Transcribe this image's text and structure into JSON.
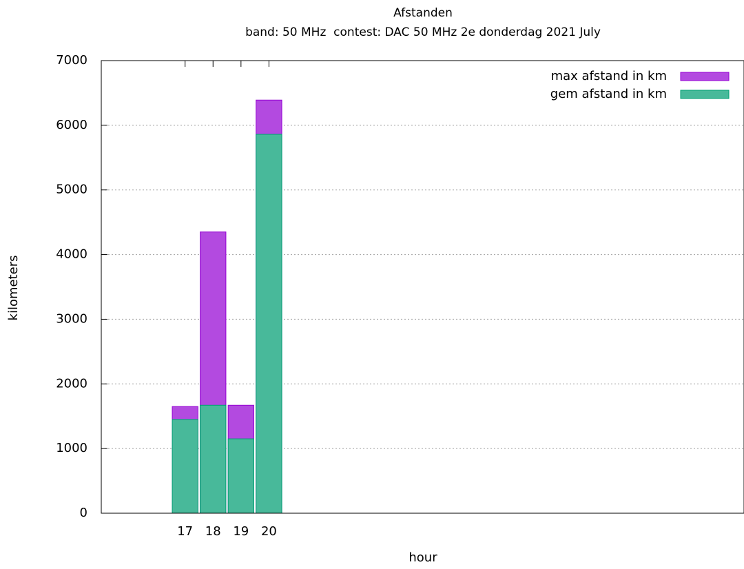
{
  "chart_data": {
    "type": "bar",
    "title": "Afstanden",
    "subtitle": "band: 50 MHz  contest: DAC 50 MHz 2e donderdag 2021 July",
    "xlabel": "hour",
    "ylabel": "kilometers",
    "x": [
      17,
      18,
      19,
      20
    ],
    "series": [
      {
        "name": "max afstand in km",
        "color": "#b34ae0",
        "edgecolor": "#9400d3",
        "values": [
          1650,
          4350,
          1670,
          6390
        ]
      },
      {
        "name": "gem afstand in km",
        "color": "#48b99a",
        "edgecolor": "#009e73",
        "values": [
          1450,
          1670,
          1150,
          5860
        ]
      }
    ],
    "xlim": [
      14,
      37
    ],
    "xticks": [
      17,
      18,
      19,
      20
    ],
    "ylim": [
      0,
      7000
    ],
    "yticks": [
      0,
      1000,
      2000,
      3000,
      4000,
      5000,
      6000,
      7000
    ],
    "grid": true,
    "legend": "upper right"
  }
}
